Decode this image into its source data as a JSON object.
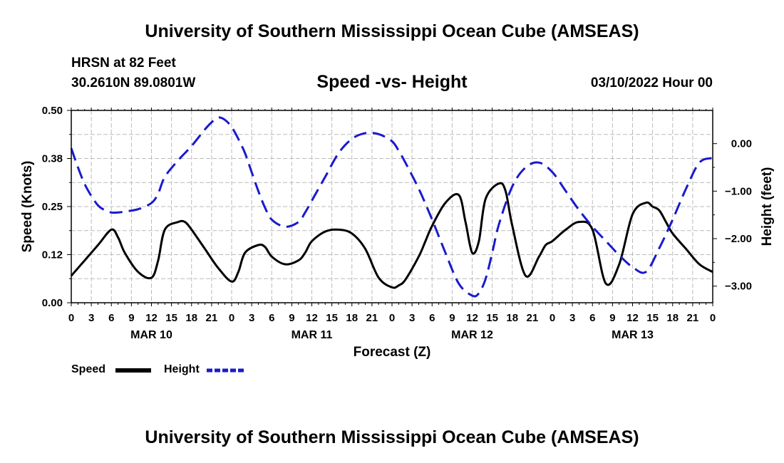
{
  "header": {
    "title": "University of Southern Mississippi Ocean Cube (AMSEAS)",
    "station": "HRSN at 82 Feet",
    "coordinates": "30.2610N  89.0801W",
    "subtitle": "Speed -vs- Height",
    "datestamp": "03/10/2022 Hour 00"
  },
  "footer": {
    "title": "University of Southern Mississippi Ocean Cube (AMSEAS)"
  },
  "legend": {
    "speed_label": "Speed",
    "height_label": "Height"
  },
  "colors": {
    "speed": "#000000",
    "height": "#1a1acc",
    "grid": "#bbbbbb"
  },
  "chart_data": {
    "type": "line",
    "xlabel": "Forecast (Z)",
    "ylabel_left": "Speed (Knots)",
    "ylabel_right": "Height (feet)",
    "x_range_hours": [
      0,
      96
    ],
    "x_tick_labels": [
      "0",
      "3",
      "6",
      "9",
      "12",
      "15",
      "18",
      "21",
      "0",
      "3",
      "6",
      "9",
      "12",
      "15",
      "18",
      "21",
      "0",
      "3",
      "6",
      "9",
      "12",
      "15",
      "18",
      "21",
      "0",
      "3",
      "6",
      "9",
      "12",
      "15",
      "18",
      "21",
      "0"
    ],
    "day_labels": [
      "MAR 10",
      "MAR 11",
      "MAR 12",
      "MAR 13"
    ],
    "y_left": {
      "range": [
        0,
        0.5
      ],
      "ticks": [
        0.0,
        0.125,
        0.25,
        0.375,
        0.5
      ],
      "tick_labels": [
        "0.00",
        "0.12",
        "0.25",
        "0.38",
        "0.50"
      ]
    },
    "y_right": {
      "range": [
        -3.35,
        0.7
      ],
      "ticks": [
        0,
        -1,
        -2,
        -3
      ],
      "tick_labels": [
        "0.00",
        "−1.00",
        "−2.00",
        "−3.00"
      ]
    },
    "series": [
      {
        "name": "Speed",
        "axis": "left",
        "style": "solid",
        "x": [
          0,
          2,
          4,
          6,
          7,
          8,
          10,
          12,
          13,
          14,
          16,
          17,
          18,
          20,
          22,
          24,
          25,
          26,
          28,
          29,
          30,
          32,
          34,
          35,
          36,
          38,
          40,
          42,
          44,
          46,
          48,
          49,
          50,
          52,
          53,
          54,
          56,
          58,
          59,
          60,
          61,
          62,
          64,
          65,
          66,
          68,
          70,
          71,
          72,
          74,
          76,
          78,
          80,
          82,
          84,
          86,
          87,
          88,
          89,
          90,
          92,
          94,
          96
        ],
        "values": [
          0.07,
          0.11,
          0.15,
          0.19,
          0.17,
          0.13,
          0.08,
          0.065,
          0.11,
          0.19,
          0.21,
          0.21,
          0.19,
          0.14,
          0.09,
          0.055,
          0.08,
          0.13,
          0.15,
          0.145,
          0.12,
          0.1,
          0.11,
          0.13,
          0.16,
          0.185,
          0.19,
          0.18,
          0.14,
          0.065,
          0.04,
          0.045,
          0.06,
          0.12,
          0.16,
          0.2,
          0.26,
          0.28,
          0.21,
          0.13,
          0.16,
          0.27,
          0.31,
          0.29,
          0.2,
          0.07,
          0.12,
          0.15,
          0.16,
          0.19,
          0.21,
          0.19,
          0.05,
          0.1,
          0.23,
          0.26,
          0.25,
          0.24,
          0.21,
          0.18,
          0.14,
          0.1,
          0.08
        ]
      },
      {
        "name": "Height",
        "axis": "right",
        "style": "dashed",
        "x": [
          0,
          1,
          2,
          3,
          4,
          5,
          6,
          7,
          8,
          10,
          12,
          13,
          14,
          16,
          18,
          20,
          21,
          22,
          23,
          24,
          25,
          26,
          27,
          28,
          29,
          30,
          32,
          34,
          35,
          36,
          38,
          40,
          42,
          44,
          46,
          48,
          49,
          50,
          52,
          54,
          56,
          58,
          60,
          61,
          62,
          63,
          64,
          66,
          68,
          70,
          72,
          74,
          76,
          78,
          80,
          82,
          84,
          86,
          88,
          90,
          92,
          94,
          96
        ],
        "values": [
          -0.1,
          -0.5,
          -0.85,
          -1.1,
          -1.3,
          -1.4,
          -1.45,
          -1.45,
          -1.43,
          -1.38,
          -1.25,
          -1.05,
          -0.7,
          -0.35,
          -0.05,
          0.3,
          0.45,
          0.55,
          0.5,
          0.35,
          0.1,
          -0.2,
          -0.6,
          -1.0,
          -1.35,
          -1.6,
          -1.75,
          -1.65,
          -1.45,
          -1.2,
          -0.7,
          -0.2,
          0.1,
          0.22,
          0.2,
          0.05,
          -0.15,
          -0.4,
          -0.95,
          -1.6,
          -2.3,
          -2.95,
          -3.2,
          -3.15,
          -2.85,
          -2.3,
          -1.7,
          -0.9,
          -0.5,
          -0.4,
          -0.6,
          -1.0,
          -1.4,
          -1.75,
          -2.05,
          -2.35,
          -2.6,
          -2.7,
          -2.2,
          -1.6,
          -0.95,
          -0.4,
          -0.3
        ]
      }
    ]
  }
}
